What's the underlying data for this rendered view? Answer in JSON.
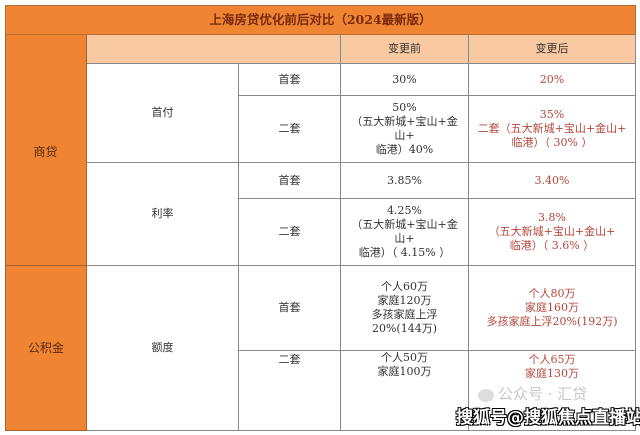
{
  "title": "上海房贷优化前后对比（2024最新版）",
  "headers": {
    "before": "变更前",
    "after": "变更后"
  },
  "categories": {
    "commercial": "商贷",
    "fund": "公积金"
  },
  "groups": {
    "down_payment": "首付",
    "rate": "利率",
    "quota": "额度"
  },
  "sub": {
    "first": "首套",
    "second": "二套"
  },
  "rows": {
    "dp_first": {
      "before": [
        "30%"
      ],
      "after": [
        "20%"
      ]
    },
    "dp_second": {
      "before": [
        "50%",
        "（五大新城+宝山+金",
        "山+",
        "临港）40%"
      ],
      "after": [
        "35%",
        "二套（五大新城+宝山+金山+",
        "临港）（ 30% ）"
      ]
    },
    "rate_first": {
      "before": [
        "3.85%"
      ],
      "after": [
        "3.40%"
      ]
    },
    "rate_second": {
      "before": [
        "4.25%",
        "（五大新城+宝山+金",
        "山+",
        "临港）（ 4.15% ）"
      ],
      "after": [
        "3.8%",
        "（五大新城+宝山+金山+",
        "临港）（ 3.6% ）"
      ]
    },
    "quota_first": {
      "before": [
        "个人60万",
        "家庭120万",
        "多孩家庭上浮",
        "20%(144万)"
      ],
      "after": [
        "个人80万",
        "家庭160万",
        "多孩家庭上浮20%(192万)"
      ]
    },
    "quota_second": {
      "before": [
        "个人50万",
        "家庭100万"
      ],
      "after": [
        "个人65万",
        "家庭130万"
      ]
    }
  },
  "watermarks": {
    "wechat": "公众号 · 汇贷",
    "sohu": "搜狐号@搜狐焦点直播站"
  },
  "colors": {
    "orange": "#ef8533",
    "peach": "#f9c9a2",
    "after_text": "#b4473a"
  }
}
